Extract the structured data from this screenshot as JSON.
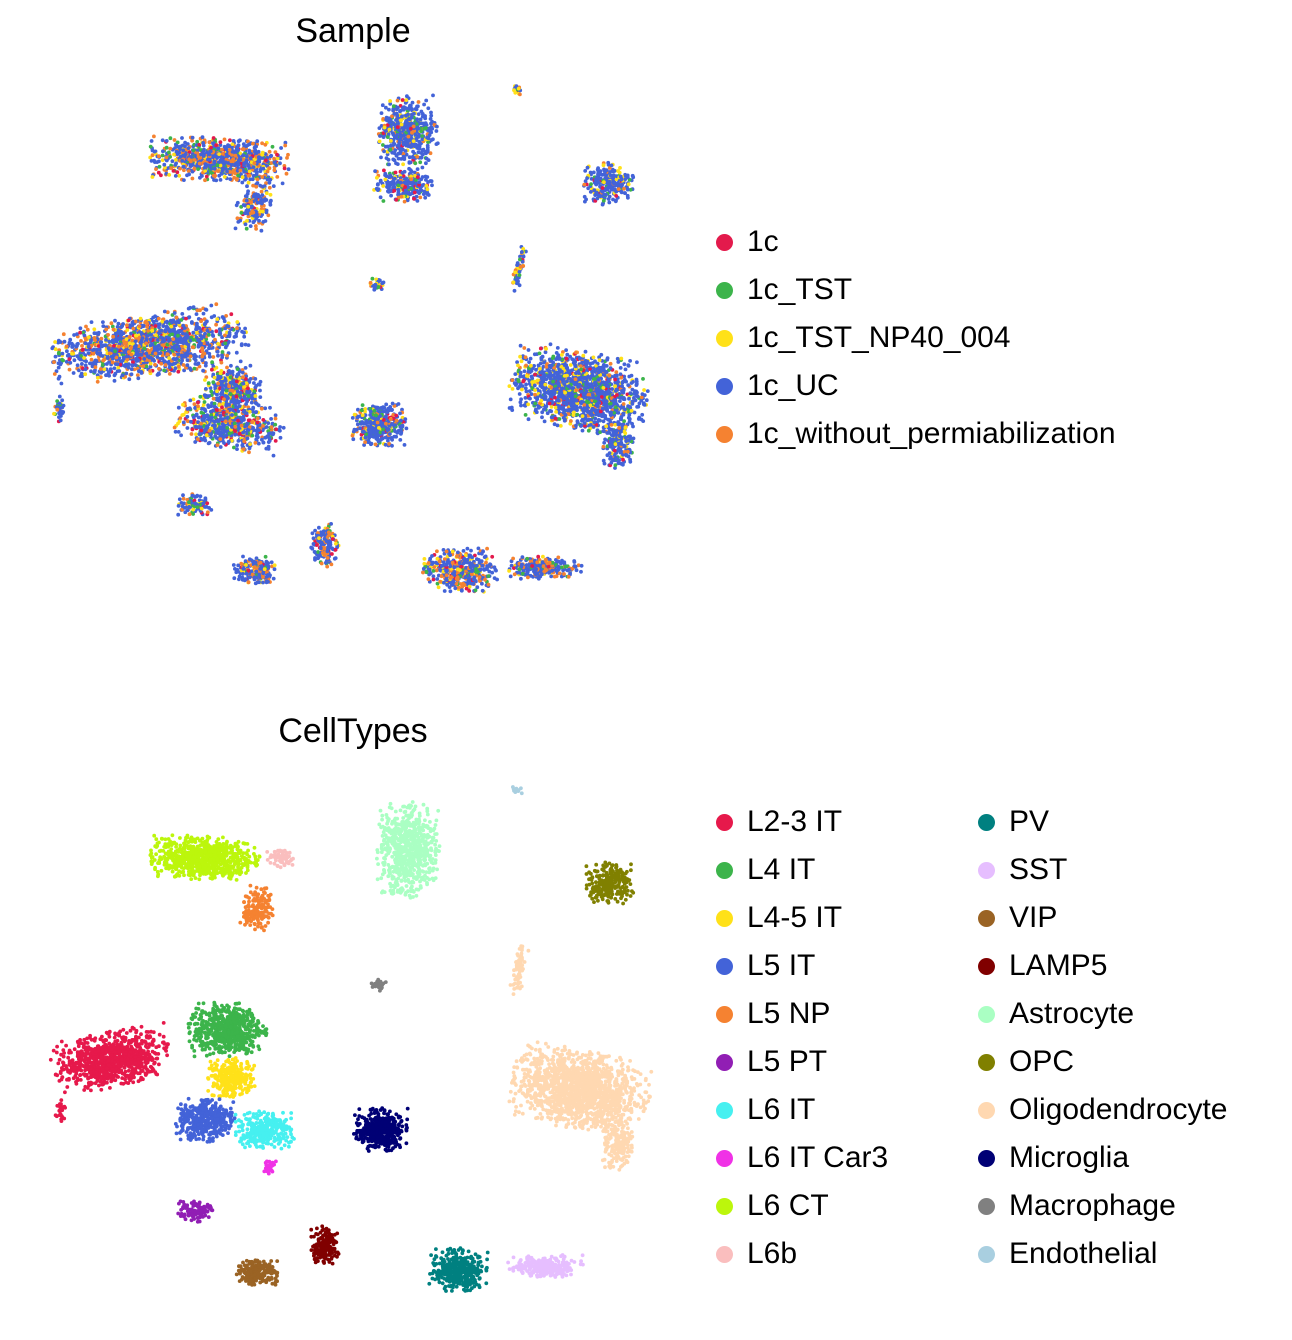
{
  "chart_data": [
    {
      "type": "scatter",
      "title": "Sample",
      "xlabel": "",
      "ylabel": "",
      "grid": false,
      "axes_visible": false,
      "legend_placement": "right",
      "legend": [
        {
          "label": "1c",
          "color": "#e31a4c"
        },
        {
          "label": "1c_TST",
          "color": "#3cb44b"
        },
        {
          "label": "1c_TST_NP40_004",
          "color": "#ffe119"
        },
        {
          "label": "1c_UC",
          "color": "#4363d8"
        },
        {
          "label": "1c_without_permiabilization",
          "color": "#f58231"
        }
      ]
    },
    {
      "type": "scatter",
      "title": "CellTypes",
      "xlabel": "",
      "ylabel": "",
      "grid": false,
      "axes_visible": false,
      "legend_placement": "right",
      "legend": [
        {
          "label": "L2-3 IT",
          "color": "#e6194b"
        },
        {
          "label": "L4 IT",
          "color": "#3cb44b"
        },
        {
          "label": "L4-5 IT",
          "color": "#ffe119"
        },
        {
          "label": "L5 IT",
          "color": "#4363d8"
        },
        {
          "label": "L5 NP",
          "color": "#f58231"
        },
        {
          "label": "L5 PT",
          "color": "#911eb4"
        },
        {
          "label": "L6 IT",
          "color": "#46f0f0"
        },
        {
          "label": "L6 IT Car3",
          "color": "#f032e6"
        },
        {
          "label": "L6 CT",
          "color": "#bcf60c"
        },
        {
          "label": "L6b",
          "color": "#fabebe"
        },
        {
          "label": "PV",
          "color": "#008080"
        },
        {
          "label": "SST",
          "color": "#e6beff"
        },
        {
          "label": "VIP",
          "color": "#9a6324"
        },
        {
          "label": "LAMP5",
          "color": "#800000"
        },
        {
          "label": "Astrocyte",
          "color": "#aaffc3"
        },
        {
          "label": "OPC",
          "color": "#808000"
        },
        {
          "label": "Oligodendrocyte",
          "color": "#ffd8b1"
        },
        {
          "label": "Microglia",
          "color": "#000075"
        },
        {
          "label": "Macrophage",
          "color": "#808080"
        },
        {
          "label": "Endothelial",
          "color": "#a9cfe0"
        }
      ]
    }
  ]
}
